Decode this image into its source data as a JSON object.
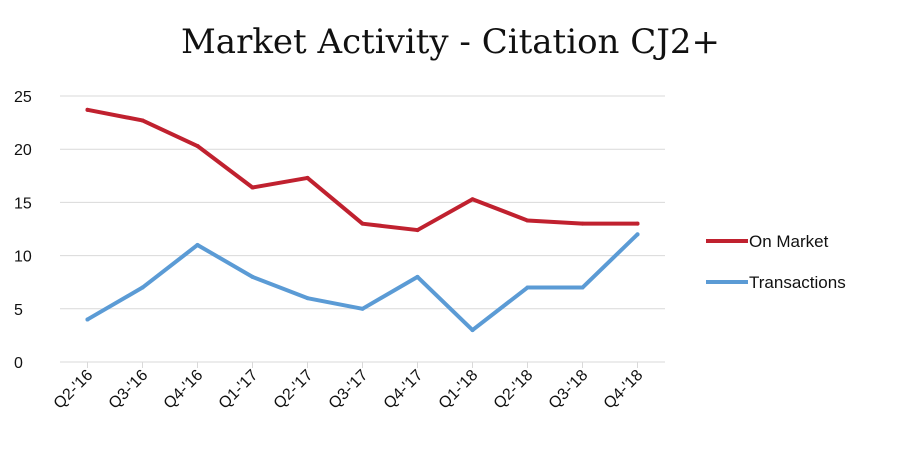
{
  "chart_data": {
    "type": "line",
    "title": "Market Activity - Citation CJ2+",
    "categories": [
      "Q2-'16",
      "Q3-'16",
      "Q4-'16",
      "Q1-'17",
      "Q2-'17",
      "Q3-'17",
      "Q4-'17",
      "Q1-'18",
      "Q2-'18",
      "Q3-'18",
      "Q4-'18"
    ],
    "series": [
      {
        "name": "On Market",
        "color": "#c0212f",
        "values": [
          23.7,
          22.7,
          20.3,
          16.4,
          17.3,
          13.0,
          12.4,
          15.3,
          13.3,
          13.0,
          13.0
        ]
      },
      {
        "name": "Transactions",
        "color": "#5b9bd5",
        "values": [
          4,
          7,
          11,
          8,
          6,
          5,
          8,
          3,
          7,
          7,
          12
        ]
      }
    ],
    "ylim": [
      0,
      25
    ],
    "yticks": [
      0,
      5,
      10,
      15,
      20,
      25
    ],
    "grid": true,
    "legend": "right"
  }
}
